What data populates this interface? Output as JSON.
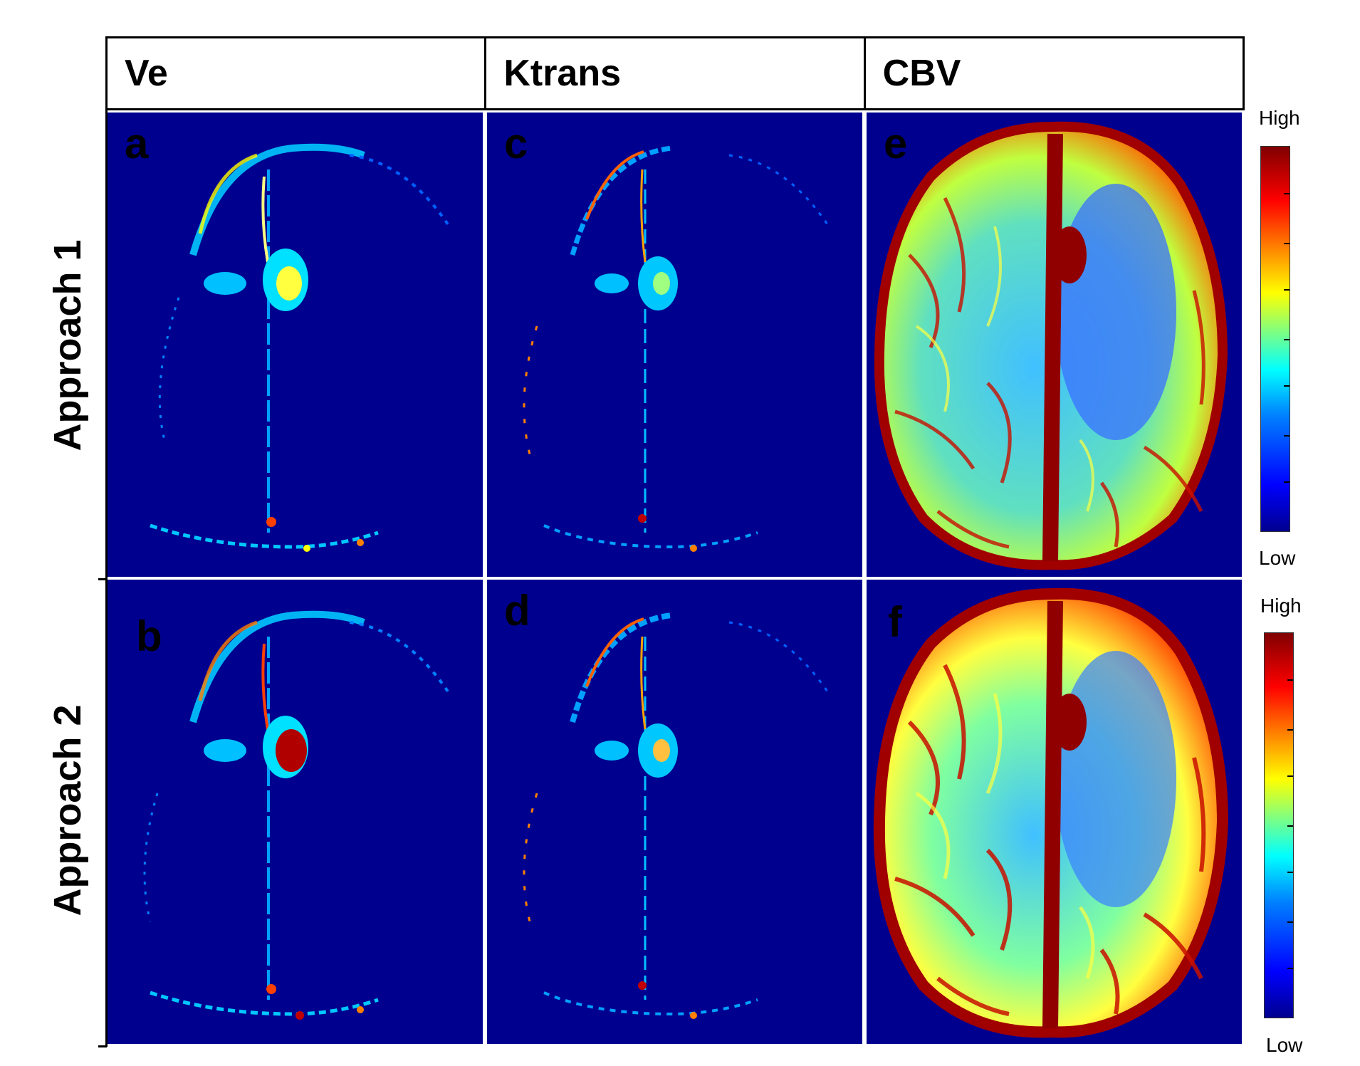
{
  "columns": [
    {
      "label": "Ve"
    },
    {
      "label": "Ktrans"
    },
    {
      "label": "CBV"
    }
  ],
  "rows": [
    {
      "label": "Approach 1"
    },
    {
      "label": "Approach 2"
    }
  ],
  "panels": [
    {
      "letter": "a"
    },
    {
      "letter": "c"
    },
    {
      "letter": "e"
    },
    {
      "letter": "b"
    },
    {
      "letter": "d"
    },
    {
      "letter": "f"
    }
  ],
  "colorbar_top": {
    "high": "High",
    "low": "Low"
  },
  "colorbar_bottom": {
    "high": "High",
    "low": "Low"
  },
  "colors": {
    "background_blue": "#00008f",
    "dark_red": "#800000",
    "cyan": "#00ffff",
    "yellow": "#ffff00"
  }
}
